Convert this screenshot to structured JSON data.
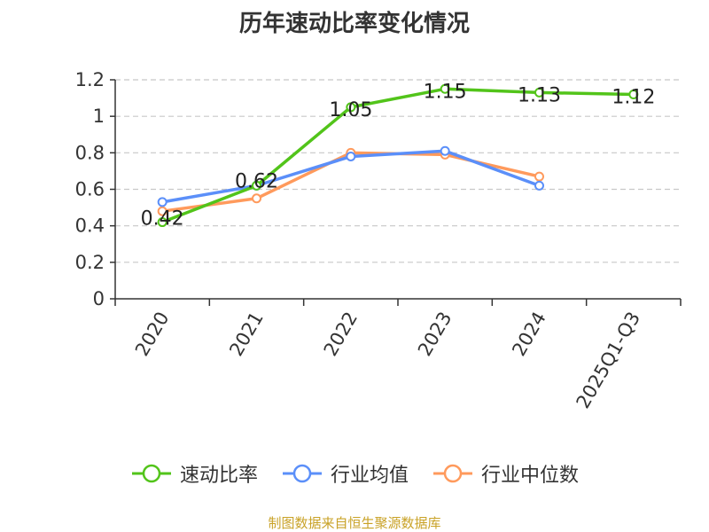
{
  "chart_data": {
    "type": "line",
    "title": "历年速动比率变化情况",
    "categories": [
      "2020",
      "2021",
      "2022",
      "2023",
      "2024",
      "2025Q1-Q3"
    ],
    "ylim": [
      0,
      1.2
    ],
    "yticks": [
      0,
      0.2,
      0.4,
      0.6,
      0.8,
      1,
      1.2
    ],
    "ytick_labels": [
      "0",
      "0.2",
      "0.4",
      "0.6",
      "0.8",
      "1",
      "1.2"
    ],
    "grid": true,
    "legend_position": "bottom",
    "series": [
      {
        "name": "速动比率",
        "color": "#52c41a",
        "values": [
          0.42,
          0.62,
          1.05,
          1.15,
          1.13,
          1.12
        ],
        "labels": [
          "0.42",
          "0.62",
          "1.05",
          "1.15",
          "1.13",
          "1.12"
        ]
      },
      {
        "name": "行业均值",
        "color": "#5b8ff9",
        "values": [
          0.53,
          0.62,
          0.78,
          0.81,
          0.62,
          null
        ]
      },
      {
        "name": "行业中位数",
        "color": "#ff9a5c",
        "values": [
          0.48,
          0.55,
          0.8,
          0.79,
          0.67,
          null
        ]
      }
    ]
  },
  "source_note": "制图数据来自恒生聚源数据库"
}
